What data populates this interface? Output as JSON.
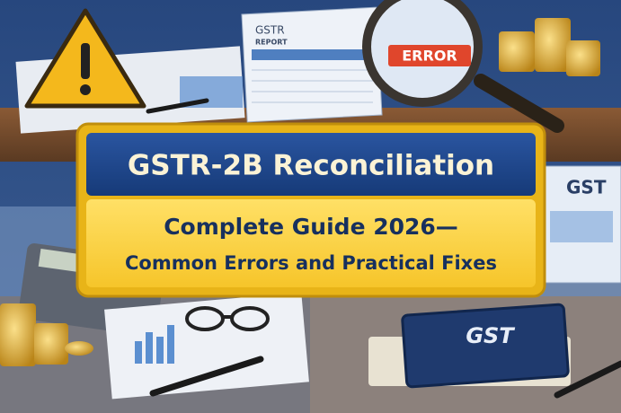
{
  "banner": {
    "title": "GSTR-2B Reconciliation",
    "subtitle_lines": [
      "Complete Guide 2026—",
      "Common Errors and Practical Fixes"
    ]
  },
  "labels": {
    "report_header": "GSTR",
    "report_sub": "REPORT",
    "error_tag": "ERROR",
    "screen": "GST",
    "book": "GST"
  }
}
